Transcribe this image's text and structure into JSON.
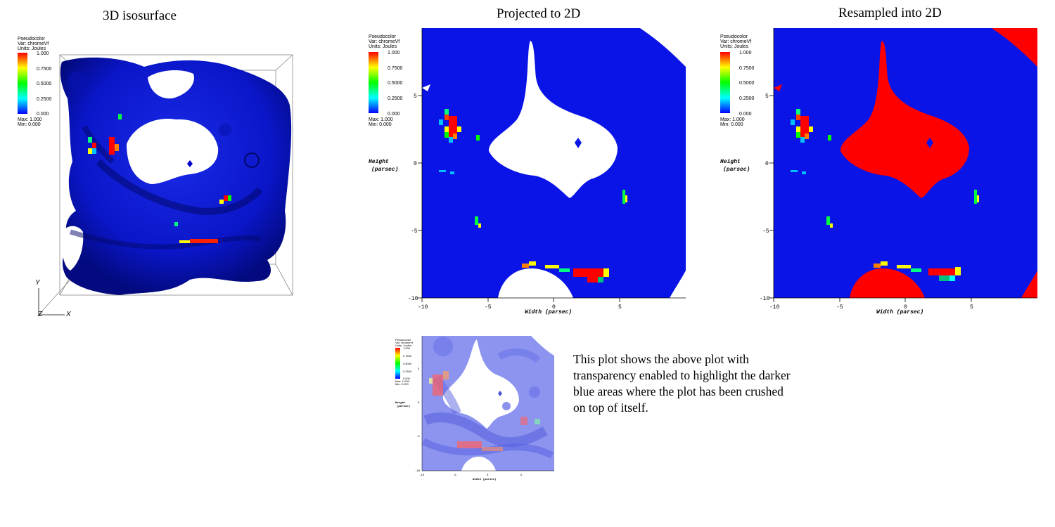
{
  "titles": {
    "panel1": "3D isosurface",
    "panel2": "Projected to 2D",
    "panel3": "Resampled into 2D"
  },
  "legend": {
    "line1": "Pseudocolor",
    "line2": "Var: chromeVf",
    "line3": "Units: Joules",
    "ticks": [
      "1.000",
      "0.7500",
      "0.5000",
      "0.2500",
      "0.000"
    ],
    "max": "Max: 1.000",
    "min": "Min: 0.000"
  },
  "axes": {
    "xlabel": "Width (parsec)",
    "ylabel_line1": "Height",
    "ylabel_line2": "(parsec)",
    "xticks": [
      "-10",
      "-5",
      "0",
      "5"
    ],
    "yticks": [
      "5",
      "0",
      "-5",
      "-10"
    ],
    "triad": {
      "y": "Y",
      "z": "Z",
      "x": "X"
    }
  },
  "caption": "This plot shows the above plot with transparency enabled to highlight the darker blue areas where the plot has been crushed on top of itself.",
  "colors": {
    "blue": "#0a14e6",
    "deep_blue": "#0000c8",
    "red": "#ff0000",
    "white": "#ffffff"
  }
}
